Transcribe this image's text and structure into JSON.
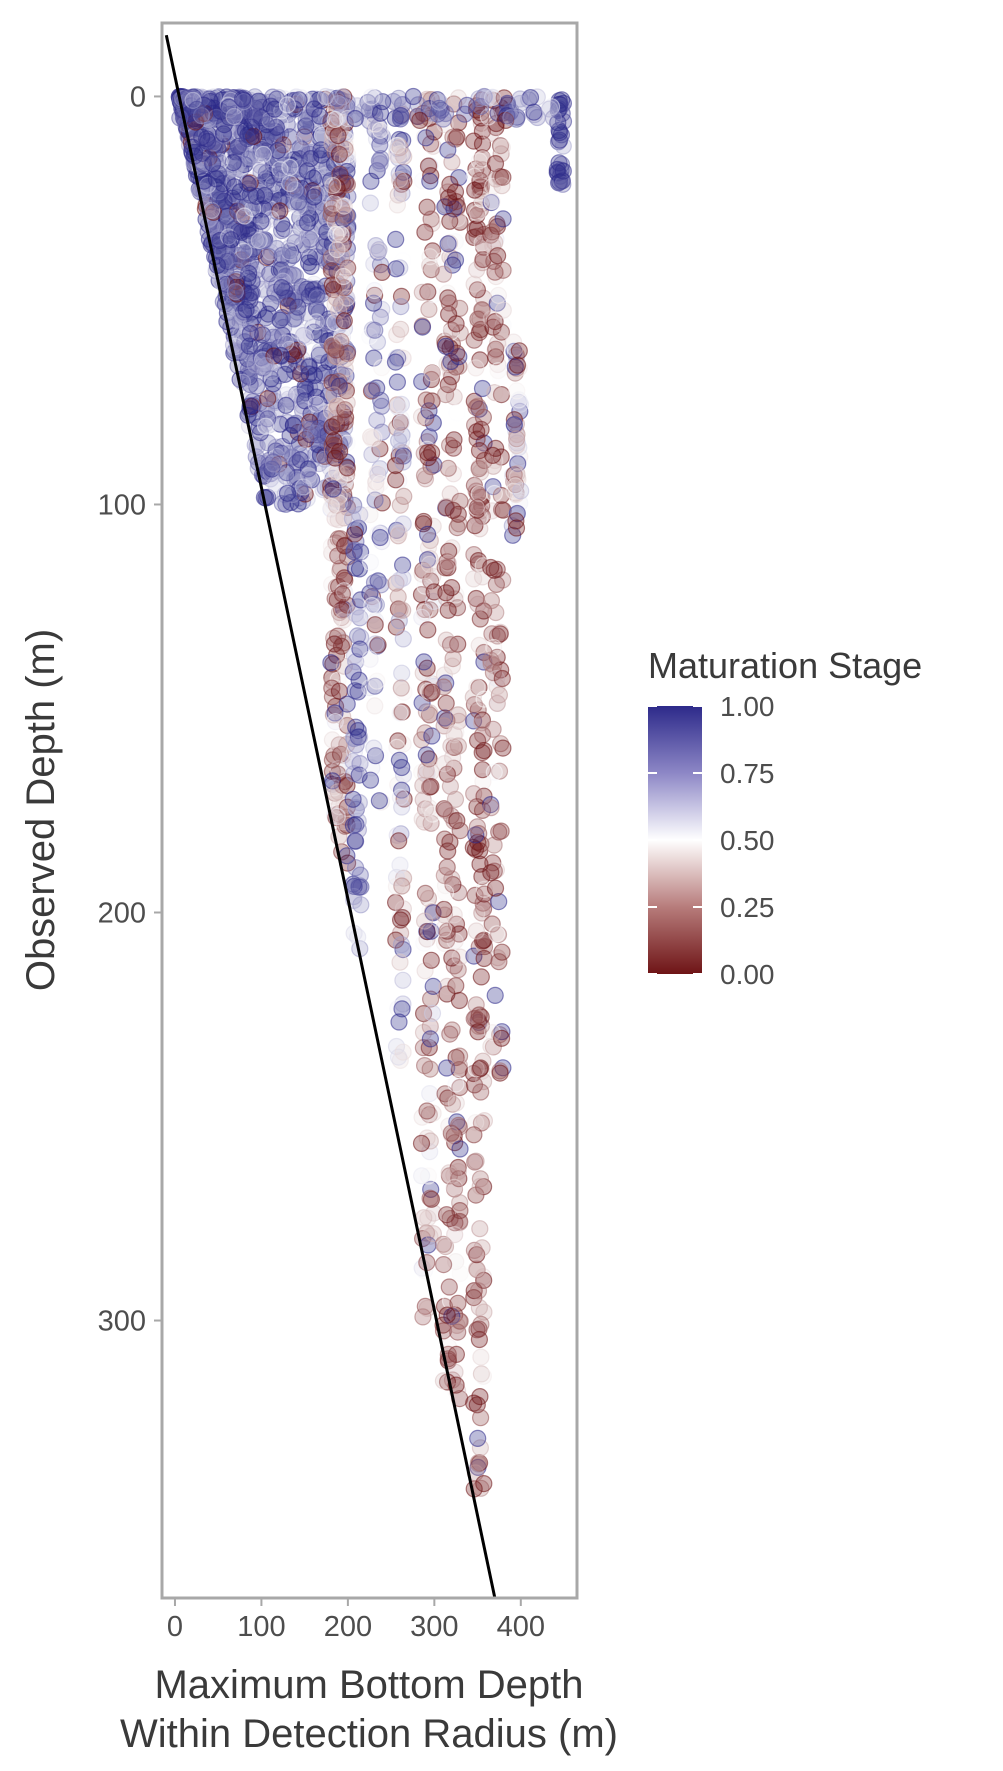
{
  "chart_data": {
    "type": "scatter",
    "xlabel_lines": [
      "Maximum Bottom Depth",
      "Within Detection Radius (m)"
    ],
    "ylabel": "Observed Depth (m)",
    "xlim": [
      -15,
      465
    ],
    "ylim": [
      -18,
      368
    ],
    "y_reversed": true,
    "x_ticks": [
      0,
      100,
      200,
      300,
      400
    ],
    "x_tick_labels": [
      "0",
      "100",
      "200",
      "300",
      "400"
    ],
    "y_ticks": [
      0,
      100,
      200,
      300
    ],
    "y_tick_labels": [
      "0",
      "100",
      "200",
      "300"
    ],
    "grid": false,
    "reference_line": {
      "points": [
        [
          -10,
          -15
        ],
        [
          370,
          368
        ]
      ],
      "color": "#000000"
    },
    "legend": {
      "title": "Maturation Stage",
      "position": "right",
      "breaks": [
        1.0,
        0.75,
        0.5,
        0.25,
        0.0
      ],
      "labels": [
        "1.00",
        "0.75",
        "0.50",
        "0.25",
        "0.00"
      ],
      "colors": {
        "low": "#6e1416",
        "mid": "#ffffff",
        "high": "#2d2a8a"
      }
    },
    "point_alpha": 0.32,
    "clusters": [
      {
        "name": "shallow-band",
        "x_range": [
          5,
          200
        ],
        "y_range": [
          0,
          100
        ],
        "constrain_line": true,
        "n": 1400,
        "maturation_mean": 0.82
      },
      {
        "name": "column-185",
        "x_range": [
          180,
          200
        ],
        "y_range": [
          0,
          190
        ],
        "constrain_line": true,
        "n": 240,
        "maturation_mean": 0.3
      },
      {
        "name": "column-210",
        "x_range": [
          205,
          215
        ],
        "y_range": [
          100,
          210
        ],
        "constrain_line": false,
        "n": 60,
        "maturation_mean": 0.82
      },
      {
        "name": "column-230",
        "x_range": [
          225,
          240
        ],
        "y_range": [
          0,
          175
        ],
        "constrain_line": false,
        "n": 90,
        "maturation_mean": 0.65
      },
      {
        "name": "column-260",
        "x_range": [
          255,
          265
        ],
        "y_range": [
          0,
          240
        ],
        "constrain_line": false,
        "n": 120,
        "maturation_mean": 0.5
      },
      {
        "name": "column-290",
        "x_range": [
          285,
          300
        ],
        "y_range": [
          0,
          300
        ],
        "constrain_line": false,
        "n": 170,
        "maturation_mean": 0.35
      },
      {
        "name": "column-320",
        "x_range": [
          310,
          330
        ],
        "y_range": [
          0,
          320
        ],
        "constrain_line": false,
        "n": 220,
        "maturation_mean": 0.25
      },
      {
        "name": "column-350",
        "x_range": [
          345,
          358
        ],
        "y_range": [
          0,
          350
        ],
        "constrain_line": false,
        "n": 210,
        "maturation_mean": 0.22
      },
      {
        "name": "column-370",
        "x_range": [
          365,
          380
        ],
        "y_range": [
          0,
          245
        ],
        "constrain_line": false,
        "n": 120,
        "maturation_mean": 0.3
      },
      {
        "name": "column-395",
        "x_range": [
          390,
          400
        ],
        "y_range": [
          60,
          110
        ],
        "constrain_line": false,
        "n": 50,
        "maturation_mean": 0.45
      },
      {
        "name": "column-445",
        "x_range": [
          442,
          450
        ],
        "y_range": [
          0,
          22
        ],
        "constrain_line": false,
        "n": 30,
        "maturation_mean": 0.95
      },
      {
        "name": "surface-row",
        "x_range": [
          0,
          450
        ],
        "y_range": [
          0,
          6
        ],
        "constrain_line": false,
        "n": 120,
        "maturation_mean": 0.8
      }
    ]
  }
}
